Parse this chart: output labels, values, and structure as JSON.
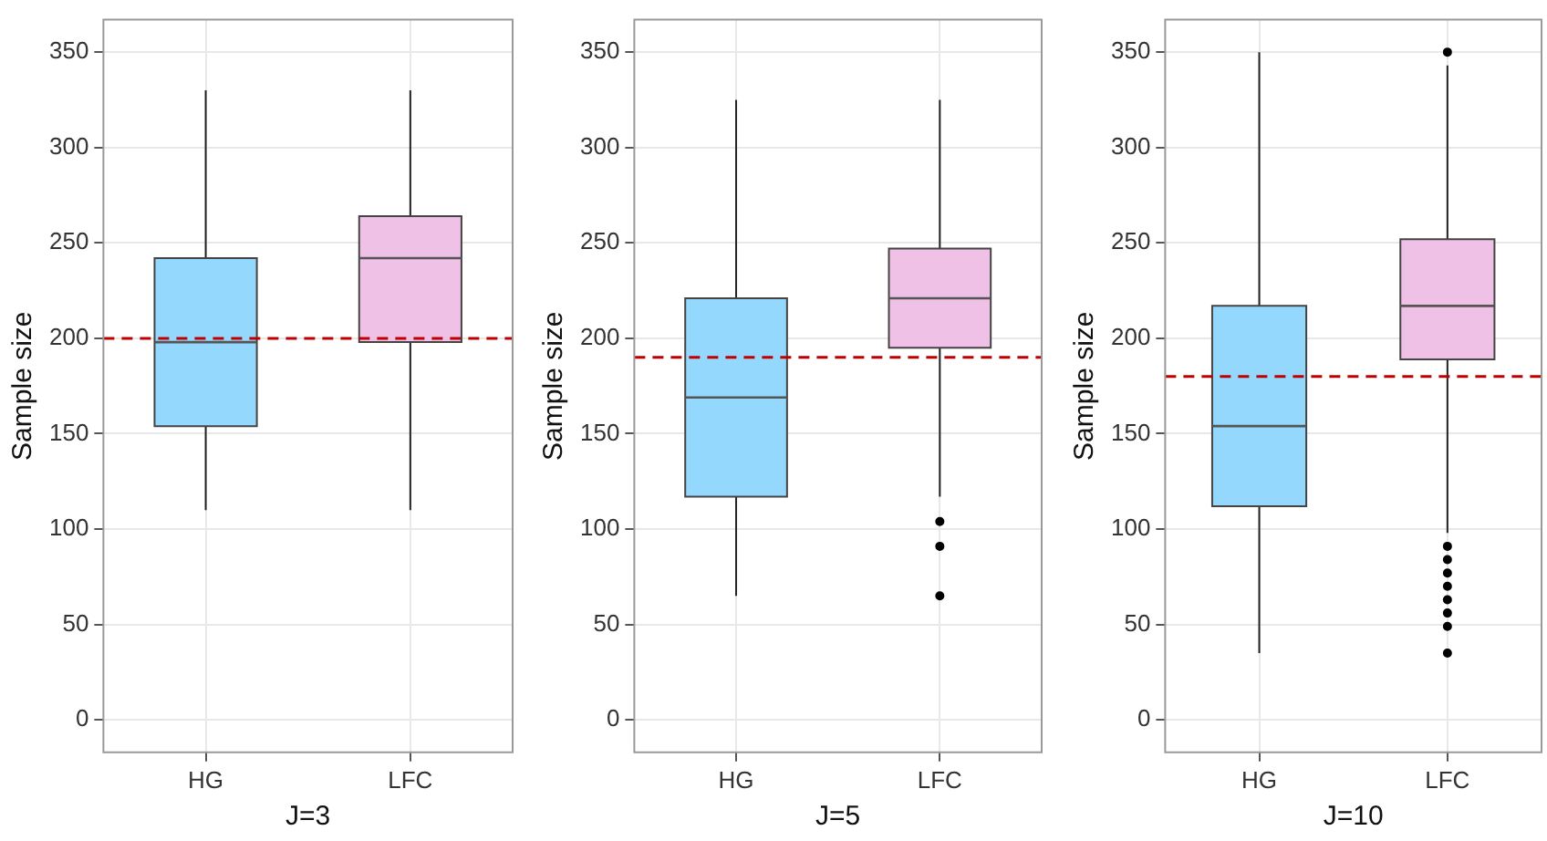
{
  "chart_data": [
    {
      "type": "box",
      "xlabel": "J=3",
      "ylabel": "Sample size",
      "categories": [
        "HG",
        "LFC"
      ],
      "ylim": [
        -17,
        367
      ],
      "yticks": [
        0,
        50,
        100,
        150,
        200,
        250,
        300,
        350
      ],
      "grid": true,
      "series": [
        {
          "colors": [
            "#95d8fd",
            "#f0c1e7"
          ],
          "boxes": [
            {
              "low": 110,
              "q1": 154,
              "median": 198,
              "q3": 242,
              "high": 330
            },
            {
              "low": 110,
              "q1": 198,
              "median": 242,
              "q3": 264,
              "high": 330
            }
          ]
        }
      ],
      "ref_lines": [
        {
          "axis": "y",
          "value": 200,
          "color": "#c00000",
          "line_style": "dashed"
        }
      ]
    },
    {
      "type": "box",
      "xlabel": "J=5",
      "ylabel": "Sample size",
      "categories": [
        "HG",
        "LFC"
      ],
      "ylim": [
        -17,
        367
      ],
      "yticks": [
        0,
        50,
        100,
        150,
        200,
        250,
        300,
        350
      ],
      "grid": true,
      "series": [
        {
          "colors": [
            "#95d8fd",
            "#f0c1e7"
          ],
          "boxes": [
            {
              "low": 65,
              "q1": 117,
              "median": 169,
              "q3": 221,
              "high": 325
            },
            {
              "low": 117,
              "q1": 195,
              "median": 221,
              "q3": 247,
              "high": 325,
              "outliers": [
                104,
                91,
                65
              ]
            }
          ]
        }
      ],
      "ref_lines": [
        {
          "axis": "y",
          "value": 190,
          "color": "#c00000",
          "line_style": "dashed"
        }
      ]
    },
    {
      "type": "box",
      "xlabel": "J=10",
      "ylabel": "Sample size",
      "categories": [
        "HG",
        "LFC"
      ],
      "ylim": [
        -17,
        367
      ],
      "yticks": [
        0,
        50,
        100,
        150,
        200,
        250,
        300,
        350
      ],
      "grid": true,
      "series": [
        {
          "colors": [
            "#95d8fd",
            "#f0c1e7"
          ],
          "boxes": [
            {
              "low": 35,
              "q1": 112,
              "median": 154,
              "q3": 217,
              "high": 350
            },
            {
              "low": 98,
              "q1": 189,
              "median": 217,
              "q3": 252,
              "high": 343,
              "outliers": [
                350,
                91,
                84,
                77,
                70,
                63,
                56,
                49,
                35
              ]
            }
          ]
        }
      ],
      "ref_lines": [
        {
          "axis": "y",
          "value": 180,
          "color": "#c00000",
          "line_style": "dashed"
        }
      ]
    }
  ]
}
